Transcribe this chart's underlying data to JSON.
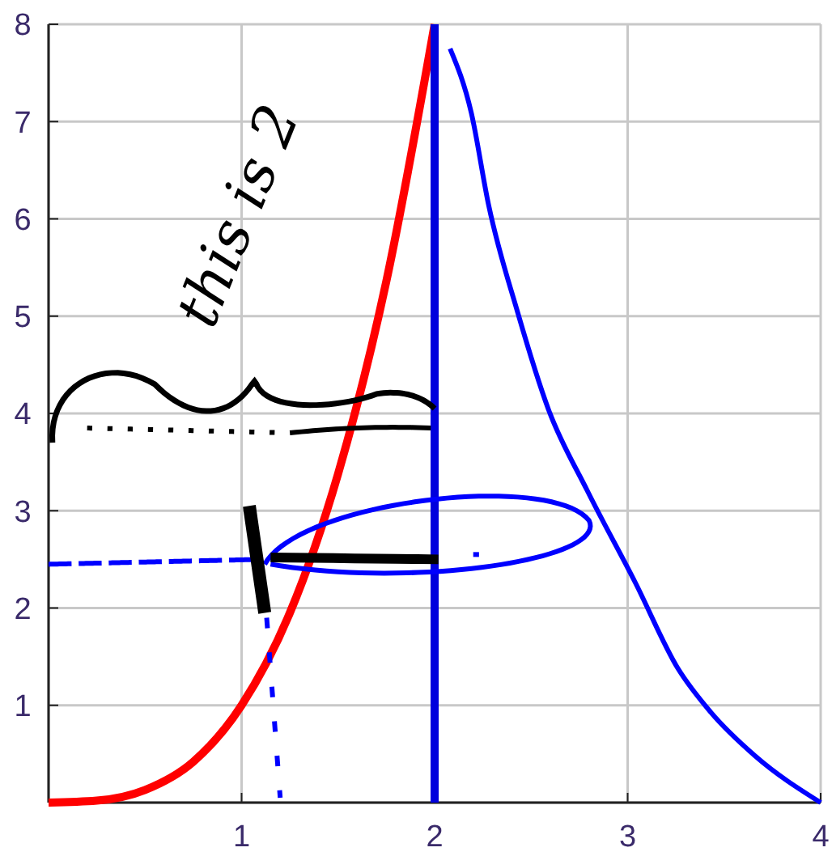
{
  "chart_data": {
    "type": "line",
    "series": [
      {
        "color": "#ff0000",
        "x": [
          0,
          0.25,
          0.5,
          0.75,
          1,
          1.25,
          1.5,
          1.75,
          2
        ],
        "values": [
          0,
          0.02,
          0.13,
          0.42,
          1,
          1.95,
          3.38,
          5.36,
          8
        ]
      },
      {
        "color": "#0000ff",
        "x": [
          2.08,
          2.19,
          2.28,
          2.43,
          2.59,
          2.79,
          3.04,
          3.26,
          3.43,
          3.66,
          4
        ],
        "values": [
          7.75,
          7.09,
          6.14,
          5.04,
          4.04,
          3.21,
          2.26,
          1.38,
          0.93,
          0.48,
          0
        ]
      }
    ],
    "xlim": [
      0,
      4
    ],
    "ylim": [
      0,
      8
    ],
    "xticks": [
      {
        "value": 0,
        "label": null
      },
      1,
      2,
      3,
      4
    ],
    "yticks": [
      {
        "value": 0,
        "label": null
      },
      1,
      2,
      3,
      4,
      5,
      6,
      7,
      8
    ],
    "grid": true,
    "marker": "none",
    "line_style": "solid",
    "ref_lines": [
      {
        "axis": "x",
        "value": 2,
        "color": "#0000dd"
      }
    ],
    "annotations": [
      "this is 2"
    ]
  }
}
